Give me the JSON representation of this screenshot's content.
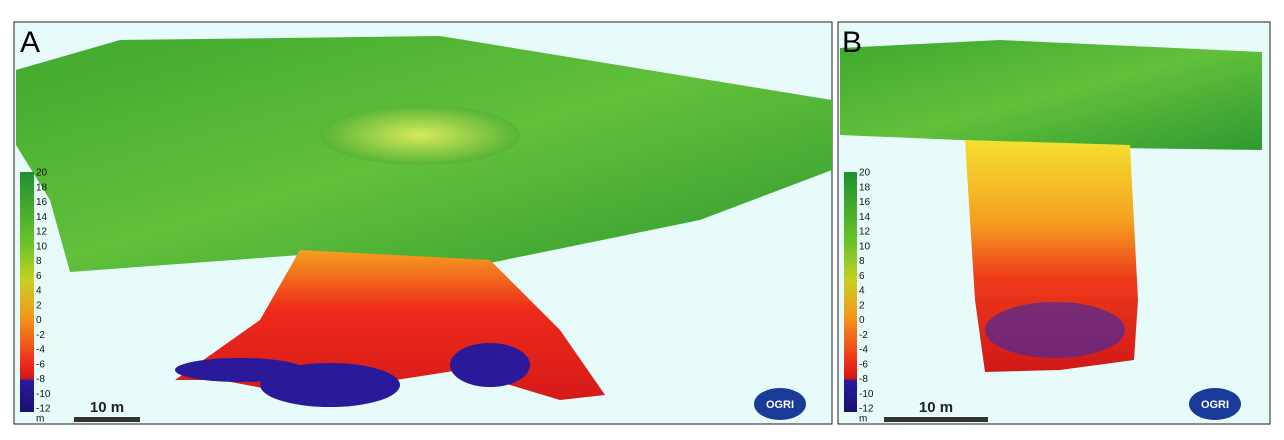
{
  "panels": [
    {
      "label": "A",
      "colorbar": {
        "ticks": [
          "20",
          "18",
          "16",
          "14",
          "12",
          "10",
          "8",
          "6",
          "4",
          "2",
          "0",
          "-2",
          "-4",
          "-6",
          "-8",
          "-10",
          "-12"
        ],
        "unit": "m"
      },
      "scalebar": "10 m",
      "logo": "OGRI"
    },
    {
      "label": "B",
      "colorbar": {
        "ticks": [
          "20",
          "18",
          "16",
          "14",
          "12",
          "10",
          "8",
          "6",
          "4",
          "2",
          "0",
          "-2",
          "-4",
          "-6",
          "-8",
          "-10",
          "-12"
        ],
        "unit": "m"
      },
      "scalebar": "10 m",
      "logo": "OGRI"
    }
  ]
}
